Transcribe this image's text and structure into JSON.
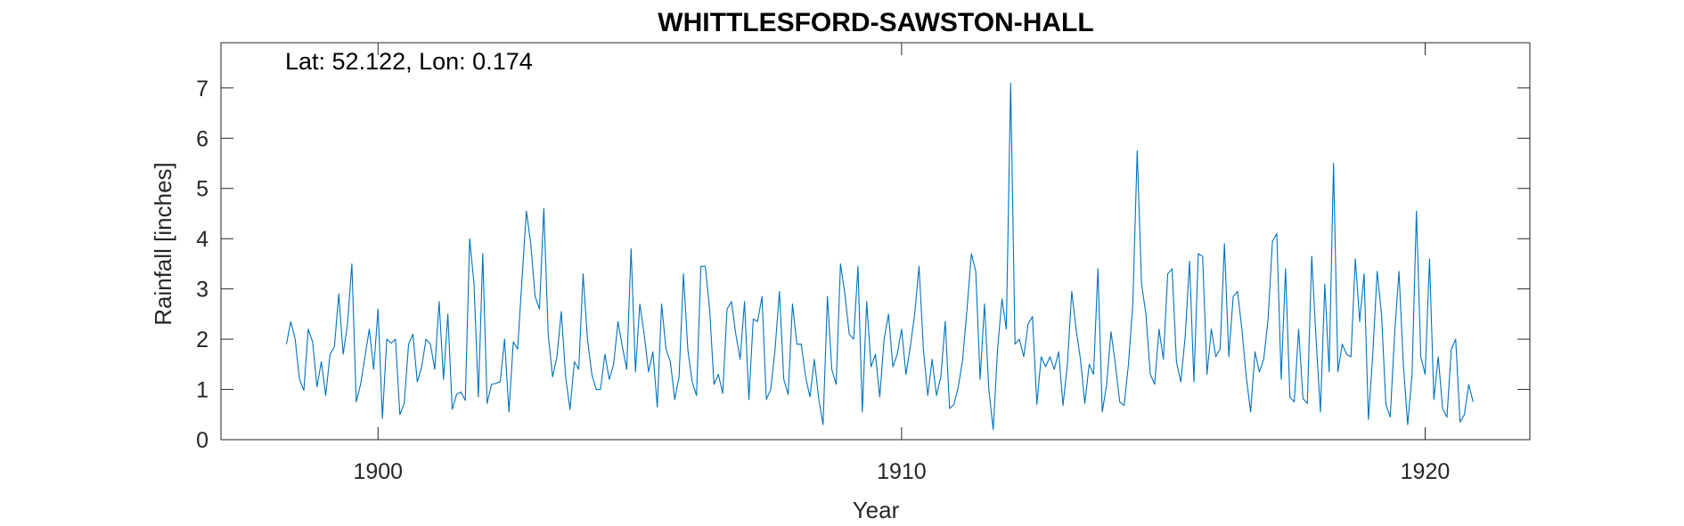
{
  "chart_data": {
    "type": "line",
    "title": "WHITTLESFORD-SAWSTON-HALL",
    "xlabel": "Year",
    "ylabel": "Rainfall [inches]",
    "annotation": "Lat: 52.122, Lon: 0.174",
    "xlim": [
      1897,
      1922
    ],
    "ylim": [
      0,
      7.9
    ],
    "xticks": [
      1900,
      1910,
      1920
    ],
    "yticks": [
      0,
      1,
      2,
      3,
      4,
      5,
      6,
      7
    ],
    "grid": false,
    "line_color": "#0072BD",
    "series": [
      {
        "start_year": 1898.25,
        "step_years": 0.0833333,
        "values": [
          1.9,
          2.35,
          2.0,
          1.2,
          0.98,
          2.2,
          1.95,
          1.05,
          1.55,
          0.88,
          1.7,
          1.85,
          2.9,
          1.7,
          2.3,
          3.5,
          0.75,
          1.1,
          1.65,
          2.2,
          1.4,
          2.6,
          0.42,
          2.0,
          1.92,
          2.0,
          0.5,
          0.72,
          1.9,
          2.1,
          1.15,
          1.45,
          2.0,
          1.9,
          1.4,
          2.75,
          1.2,
          2.5,
          0.6,
          0.9,
          0.95,
          0.78,
          4.0,
          3.1,
          0.85,
          3.7,
          0.72,
          1.1,
          1.12,
          1.15,
          2.0,
          0.55,
          1.95,
          1.8,
          3.2,
          4.55,
          3.9,
          2.85,
          2.6,
          4.6,
          2.1,
          1.25,
          1.65,
          2.55,
          1.25,
          0.6,
          1.55,
          1.4,
          3.3,
          2.0,
          1.3,
          1.0,
          1.0,
          1.7,
          1.2,
          1.5,
          2.35,
          1.85,
          1.4,
          3.8,
          1.35,
          2.7,
          2.1,
          1.35,
          1.75,
          0.65,
          2.7,
          1.8,
          1.55,
          0.8,
          1.25,
          3.3,
          1.8,
          1.15,
          0.88,
          3.45,
          3.45,
          2.6,
          1.1,
          1.3,
          0.92,
          2.6,
          2.75,
          2.1,
          1.6,
          2.75,
          0.8,
          2.4,
          2.35,
          2.85,
          0.8,
          1.0,
          1.8,
          2.95,
          1.2,
          0.9,
          2.7,
          1.9,
          1.9,
          1.25,
          0.85,
          1.6,
          0.82,
          0.3,
          2.85,
          1.4,
          1.1,
          3.5,
          2.9,
          2.1,
          2.0,
          3.45,
          0.55,
          2.75,
          1.45,
          1.7,
          0.85,
          2.0,
          2.5,
          1.45,
          1.7,
          2.2,
          1.3,
          1.85,
          2.5,
          3.45,
          1.8,
          0.88,
          1.6,
          0.88,
          1.25,
          2.35,
          0.62,
          0.7,
          1.05,
          1.6,
          2.6,
          3.7,
          3.35,
          1.2,
          2.7,
          1.0,
          0.2,
          1.8,
          2.8,
          2.2,
          7.1,
          1.9,
          2.0,
          1.65,
          2.3,
          2.45,
          0.7,
          1.65,
          1.45,
          1.65,
          1.4,
          1.75,
          0.68,
          1.5,
          2.95,
          2.2,
          1.6,
          0.72,
          1.5,
          1.3,
          3.4,
          0.55,
          1.1,
          2.15,
          1.5,
          0.75,
          0.68,
          1.5,
          2.7,
          5.75,
          3.1,
          2.5,
          1.3,
          1.1,
          2.2,
          1.6,
          3.3,
          3.4,
          1.55,
          1.15,
          2.05,
          3.55,
          1.15,
          3.7,
          3.65,
          1.3,
          2.2,
          1.65,
          1.8,
          3.9,
          1.65,
          2.85,
          2.95,
          2.2,
          1.25,
          0.55,
          1.75,
          1.35,
          1.6,
          2.4,
          3.95,
          4.1,
          1.2,
          3.4,
          0.85,
          0.75,
          2.2,
          0.82,
          0.72,
          3.65,
          2.0,
          0.55,
          3.1,
          1.35,
          5.5,
          1.35,
          1.9,
          1.7,
          1.65,
          3.6,
          2.35,
          3.3,
          0.4,
          1.7,
          3.35,
          2.5,
          0.7,
          0.45,
          2.1,
          3.35,
          1.5,
          0.3,
          1.3,
          4.55,
          1.65,
          1.3,
          3.6,
          0.8,
          1.65,
          0.62,
          0.45,
          1.8,
          2.0,
          0.35,
          0.5,
          1.1,
          0.75
        ]
      }
    ]
  }
}
